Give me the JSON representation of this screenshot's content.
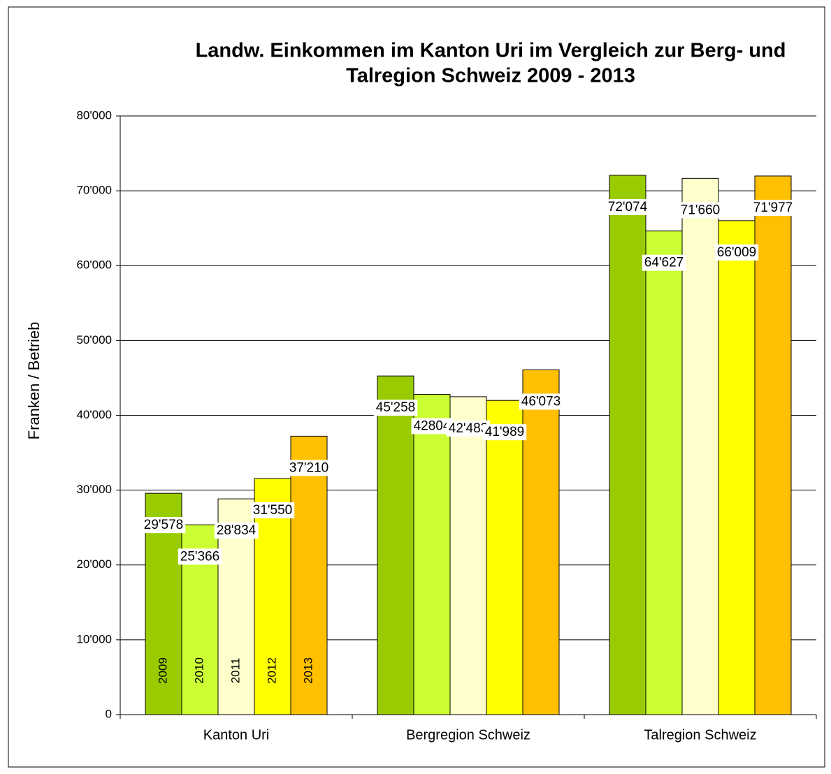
{
  "chart_data": {
    "type": "bar",
    "title": [
      "Landw. Einkommen im Kanton Uri im Vergleich zur Berg- und",
      "Talregion Schweiz 2009 - 2013"
    ],
    "y_label": "Franken / Betrieb",
    "categories": [
      "Kanton Uri",
      "Bergregion Schweiz",
      "Talregion Schweiz"
    ],
    "series": [
      {
        "name": "2009",
        "color": "#99cc00",
        "values": [
          29578,
          45258,
          72074
        ],
        "value_labels": [
          "29'578",
          "45'258",
          "72'074"
        ]
      },
      {
        "name": "2010",
        "color": "#ccff33",
        "values": [
          25366,
          42804,
          64627
        ],
        "value_labels": [
          "25'366",
          "42804",
          "64'627"
        ]
      },
      {
        "name": "2011",
        "color": "#ffffcc",
        "values": [
          28834,
          42483,
          71660
        ],
        "value_labels": [
          "28'834",
          "42'483",
          "71'660"
        ]
      },
      {
        "name": "2012",
        "color": "#ffff00",
        "values": [
          31550,
          41989,
          66009
        ],
        "value_labels": [
          "31'550",
          "41'989",
          "66'009"
        ]
      },
      {
        "name": "2013",
        "color": "#ffc000",
        "values": [
          37210,
          46073,
          71977
        ],
        "value_labels": [
          "37'210",
          "46'073",
          "71'977"
        ]
      }
    ],
    "ylim": [
      0,
      80000
    ],
    "yticks": [
      0,
      {
        "value": 10000,
        "label": "10'000"
      },
      {
        "value": 20000,
        "label": "20'000"
      },
      {
        "value": 30000,
        "label": "30'000"
      },
      {
        "value": 40000,
        "label": "40'000"
      },
      {
        "value": 50000,
        "label": "50'000"
      },
      {
        "value": 60000,
        "label": "60'000"
      },
      {
        "value": 70000,
        "label": "70'000"
      },
      {
        "value": 80000,
        "label": "80'000"
      }
    ],
    "grid": true
  }
}
